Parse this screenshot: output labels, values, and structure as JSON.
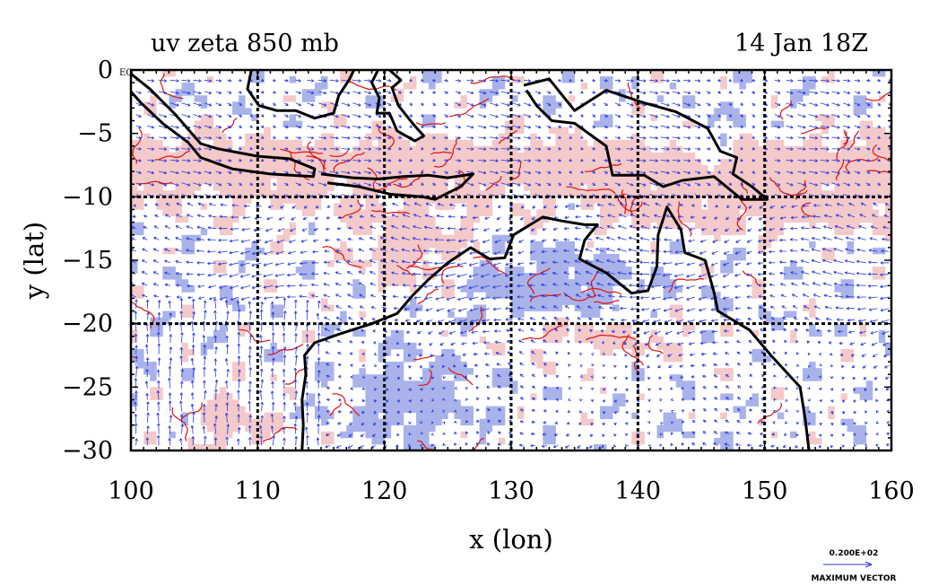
{
  "chart_data": {
    "type": "heatmap",
    "title_left": "uv zeta 850 mb",
    "title_right": "14 Jan 18Z",
    "xlabel": "x (lon)",
    "ylabel": "y (lat)",
    "xlim": [
      100,
      160
    ],
    "ylim": [
      -30,
      0
    ],
    "x_ticks": [
      100,
      110,
      120,
      130,
      140,
      150,
      160
    ],
    "y_ticks": [
      0,
      -5,
      -10,
      -15,
      -20,
      -25,
      -30
    ],
    "x_tick_labels": [
      "100",
      "110",
      "120",
      "130",
      "140",
      "150",
      "160"
    ],
    "y_tick_labels": [
      "0",
      "−5",
      "−10",
      "−15",
      "−20",
      "−25",
      "−30"
    ],
    "y_tick_suffix": "EQ",
    "grid_x": [
      110,
      120,
      130,
      140,
      150
    ],
    "grid_y": [
      -10,
      -20
    ],
    "grid": true,
    "fields": [
      "wind vectors (u, v)",
      "relative vorticity (zeta)"
    ],
    "colors": {
      "positive_fill": "#f4c9c9",
      "negative_fill": "#a9b3ea",
      "contour": "#e01010",
      "vector": "#2838e0",
      "coast": "#000000"
    },
    "vector_key": {
      "value_label": "0.200E+02",
      "caption": "MAXIMUM VECTOR"
    },
    "coastlines": [
      {
        "name": "Sumatra-Java",
        "points": [
          [
            100.0,
            -0.3
          ],
          [
            101.5,
            -1.5
          ],
          [
            103.5,
            -3.5
          ],
          [
            105.5,
            -5.8
          ],
          [
            106.8,
            -6.2
          ],
          [
            110.0,
            -6.8
          ],
          [
            112.5,
            -7.0
          ],
          [
            114.5,
            -7.8
          ],
          [
            114.4,
            -8.4
          ],
          [
            111.0,
            -8.2
          ],
          [
            108.0,
            -7.8
          ],
          [
            105.5,
            -6.9
          ],
          [
            104.5,
            -5.7
          ],
          [
            102.5,
            -4.2
          ],
          [
            100.8,
            -2.6
          ],
          [
            100.0,
            -1.7
          ]
        ]
      },
      {
        "name": "Borneo",
        "points": [
          [
            109.5,
            0.0
          ],
          [
            109.2,
            -1.5
          ],
          [
            110.1,
            -2.8
          ],
          [
            111.5,
            -3.2
          ],
          [
            113.0,
            -3.2
          ],
          [
            114.5,
            -3.8
          ],
          [
            116.0,
            -3.4
          ],
          [
            116.4,
            -2.0
          ],
          [
            117.2,
            -0.8
          ],
          [
            117.6,
            0.0
          ]
        ]
      },
      {
        "name": "Sulawesi",
        "points": [
          [
            120.4,
            0.0
          ],
          [
            121.3,
            -0.8
          ],
          [
            120.6,
            -1.4
          ],
          [
            121.1,
            -2.8
          ],
          [
            122.3,
            -4.3
          ],
          [
            123.1,
            -5.2
          ],
          [
            122.4,
            -5.6
          ],
          [
            121.0,
            -4.8
          ],
          [
            120.4,
            -3.4
          ],
          [
            119.4,
            -3.4
          ],
          [
            119.6,
            -2.2
          ],
          [
            119.0,
            -1.0
          ],
          [
            119.5,
            0.0
          ]
        ]
      },
      {
        "name": "Lesser Sundas",
        "points": [
          [
            115.0,
            -8.2
          ],
          [
            117.5,
            -8.5
          ],
          [
            119.5,
            -8.6
          ],
          [
            121.5,
            -8.4
          ],
          [
            123.5,
            -8.3
          ],
          [
            125.0,
            -8.5
          ],
          [
            127.0,
            -8.2
          ],
          [
            126.0,
            -9.2
          ],
          [
            124.0,
            -10.2
          ],
          [
            123.0,
            -10.0
          ],
          [
            120.5,
            -9.8
          ],
          [
            118.0,
            -9.2
          ],
          [
            115.5,
            -8.9
          ]
        ]
      },
      {
        "name": "New Guinea",
        "points": [
          [
            131.0,
            -1.2
          ],
          [
            133.0,
            -0.7
          ],
          [
            135.0,
            -3.2
          ],
          [
            137.5,
            -1.6
          ],
          [
            140.5,
            -2.6
          ],
          [
            143.0,
            -3.3
          ],
          [
            145.5,
            -4.6
          ],
          [
            146.5,
            -6.4
          ],
          [
            147.8,
            -6.9
          ],
          [
            147.5,
            -8.2
          ],
          [
            149.0,
            -9.2
          ],
          [
            150.2,
            -10.2
          ],
          [
            148.2,
            -10.2
          ],
          [
            146.0,
            -8.4
          ],
          [
            143.5,
            -8.7
          ],
          [
            142.0,
            -9.2
          ],
          [
            140.5,
            -8.3
          ],
          [
            138.0,
            -8.3
          ],
          [
            137.5,
            -6.0
          ],
          [
            135.0,
            -4.2
          ],
          [
            133.2,
            -4.0
          ],
          [
            132.0,
            -2.8
          ],
          [
            131.2,
            -1.6
          ]
        ]
      },
      {
        "name": "Australia",
        "points": [
          [
            113.5,
            -30.0
          ],
          [
            113.6,
            -28.0
          ],
          [
            113.5,
            -26.0
          ],
          [
            113.8,
            -24.0
          ],
          [
            113.7,
            -22.5
          ],
          [
            114.5,
            -21.5
          ],
          [
            116.5,
            -20.8
          ],
          [
            119.0,
            -20.0
          ],
          [
            121.0,
            -19.2
          ],
          [
            122.2,
            -17.8
          ],
          [
            123.5,
            -16.5
          ],
          [
            125.0,
            -15.2
          ],
          [
            126.8,
            -14.0
          ],
          [
            128.3,
            -14.9
          ],
          [
            129.5,
            -14.8
          ],
          [
            130.2,
            -13.0
          ],
          [
            131.5,
            -12.2
          ],
          [
            132.5,
            -11.6
          ],
          [
            134.0,
            -11.9
          ],
          [
            135.8,
            -12.2
          ],
          [
            136.8,
            -12.2
          ],
          [
            135.8,
            -13.4
          ],
          [
            135.4,
            -14.9
          ],
          [
            137.5,
            -16.0
          ],
          [
            139.5,
            -17.6
          ],
          [
            140.8,
            -17.4
          ],
          [
            141.5,
            -15.5
          ],
          [
            141.6,
            -13.0
          ],
          [
            142.3,
            -10.8
          ],
          [
            143.4,
            -12.6
          ],
          [
            143.7,
            -14.4
          ],
          [
            145.3,
            -15.0
          ],
          [
            146.0,
            -17.5
          ],
          [
            146.3,
            -19.0
          ],
          [
            148.8,
            -20.5
          ],
          [
            150.5,
            -22.5
          ],
          [
            152.8,
            -25.0
          ],
          [
            153.2,
            -27.5
          ],
          [
            153.5,
            -30.0
          ]
        ]
      }
    ]
  }
}
